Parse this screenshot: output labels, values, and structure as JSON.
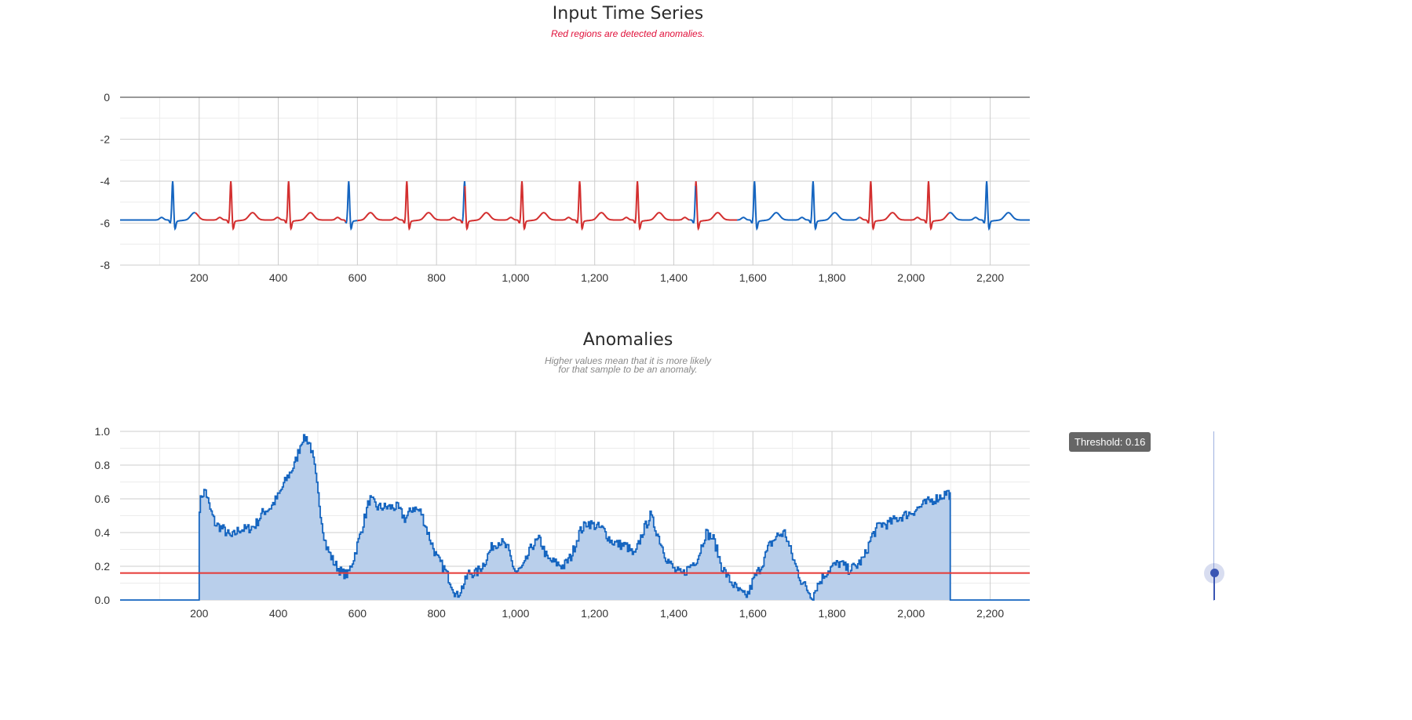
{
  "timeseries_chart": {
    "title": "Input Time Series",
    "subtitle": "Red regions are detected anomalies."
  },
  "anomaly_chart": {
    "title": "Anomalies",
    "subtitle_line1": "Higher values mean that it is more likely",
    "subtitle_line2": "for that sample to be an anomaly."
  },
  "threshold": {
    "label": "Threshold: 0.16",
    "value": 0.16
  },
  "colors": {
    "normal": "#1565c0",
    "anomaly": "#d32f2f",
    "area_fill": "#b9cfeb",
    "threshold_line": "#e53935"
  },
  "chart_data": [
    {
      "type": "line",
      "title": "Input Time Series",
      "subtitle": "Red regions are detected anomalies.",
      "xlim": [
        0,
        2300
      ],
      "ylim": [
        -8,
        0
      ],
      "x_ticks": [
        200,
        400,
        600,
        800,
        1000,
        1200,
        1400,
        1600,
        1800,
        2000,
        2200
      ],
      "x_tick_labels": [
        "200",
        "400",
        "600",
        "800",
        "1,000",
        "1,200",
        "1,400",
        "1,600",
        "1,800",
        "2,000",
        "2,200"
      ],
      "y_ticks": [
        0,
        -2,
        -4,
        -6,
        -8
      ],
      "y_tick_labels": [
        "0",
        "-2",
        "-4",
        "-6",
        "-8"
      ],
      "grid": true,
      "waveform": "periodic ECG-like signal, baseline about -5.8, R peaks near -4.0",
      "beat_peaks_x": [
        133,
        280,
        426,
        578,
        725,
        871,
        1016,
        1162,
        1308,
        1456,
        1604,
        1752,
        1898,
        2044,
        2191
      ],
      "series": [
        {
          "name": "",
          "color": "#1565c0",
          "segments": [
            [
              0,
              190
            ],
            [
              570,
              600
            ],
            [
              866,
              872
            ],
            [
              1440,
              1455
            ],
            [
              1560,
              1870
            ],
            [
              2095,
              2300
            ]
          ]
        },
        {
          "name": "",
          "color": "#d32f2f",
          "segments": [
            [
              190,
              570
            ],
            [
              600,
              866
            ],
            [
              872,
              1440
            ],
            [
              1455,
              1560
            ],
            [
              1870,
              2095
            ]
          ]
        }
      ]
    },
    {
      "type": "area",
      "title": "Anomalies",
      "subtitle": "Higher values mean that it is more likely for that sample to be an anomaly.",
      "xlim": [
        0,
        2300
      ],
      "ylim": [
        0,
        1
      ],
      "x_ticks": [
        200,
        400,
        600,
        800,
        1000,
        1200,
        1400,
        1600,
        1800,
        2000,
        2200
      ],
      "x_tick_labels": [
        "200",
        "400",
        "600",
        "800",
        "1,000",
        "1,200",
        "1,400",
        "1,600",
        "1,800",
        "2,000",
        "2,200"
      ],
      "y_ticks": [
        0.0,
        0.2,
        0.4,
        0.6,
        0.8,
        1.0
      ],
      "y_tick_labels": [
        "0.0",
        "0.2",
        "0.4",
        "0.6",
        "0.8",
        "1.0"
      ],
      "grid": true,
      "threshold": 0.16,
      "x": [
        0,
        199,
        200,
        205,
        215,
        225,
        240,
        260,
        280,
        300,
        320,
        340,
        360,
        380,
        400,
        420,
        440,
        450,
        460,
        470,
        480,
        490,
        500,
        510,
        520,
        540,
        560,
        575,
        590,
        610,
        630,
        650,
        670,
        700,
        720,
        740,
        760,
        780,
        800,
        820,
        840,
        850,
        860,
        870,
        880,
        900,
        920,
        940,
        960,
        980,
        990,
        1000,
        1020,
        1040,
        1060,
        1080,
        1100,
        1120,
        1140,
        1160,
        1180,
        1200,
        1220,
        1240,
        1260,
        1280,
        1300,
        1320,
        1340,
        1360,
        1380,
        1400,
        1420,
        1440,
        1460,
        1480,
        1500,
        1520,
        1540,
        1560,
        1580,
        1590,
        1600,
        1620,
        1640,
        1660,
        1680,
        1700,
        1720,
        1740,
        1750,
        1760,
        1780,
        1800,
        1820,
        1840,
        1860,
        1880,
        1900,
        1920,
        1940,
        1960,
        1980,
        2000,
        2020,
        2040,
        2060,
        2080,
        2090,
        2099,
        2100,
        2300
      ],
      "values": [
        0,
        0,
        0.55,
        0.62,
        0.65,
        0.55,
        0.45,
        0.42,
        0.37,
        0.42,
        0.42,
        0.44,
        0.52,
        0.55,
        0.62,
        0.72,
        0.8,
        0.88,
        0.96,
        0.96,
        0.92,
        0.8,
        0.62,
        0.45,
        0.32,
        0.22,
        0.16,
        0.15,
        0.25,
        0.42,
        0.6,
        0.55,
        0.55,
        0.55,
        0.48,
        0.55,
        0.52,
        0.38,
        0.25,
        0.18,
        0.08,
        0.02,
        0.06,
        0.1,
        0.16,
        0.16,
        0.22,
        0.32,
        0.35,
        0.3,
        0.22,
        0.16,
        0.2,
        0.32,
        0.36,
        0.24,
        0.22,
        0.2,
        0.26,
        0.4,
        0.46,
        0.44,
        0.42,
        0.35,
        0.33,
        0.32,
        0.26,
        0.4,
        0.5,
        0.38,
        0.25,
        0.18,
        0.15,
        0.2,
        0.25,
        0.4,
        0.36,
        0.2,
        0.12,
        0.06,
        0.02,
        0.05,
        0.12,
        0.2,
        0.32,
        0.38,
        0.4,
        0.25,
        0.12,
        0.05,
        0.02,
        0.08,
        0.15,
        0.2,
        0.22,
        0.18,
        0.2,
        0.25,
        0.38,
        0.45,
        0.45,
        0.48,
        0.5,
        0.52,
        0.55,
        0.58,
        0.6,
        0.62,
        0.64,
        0.62,
        0,
        0
      ]
    }
  ]
}
